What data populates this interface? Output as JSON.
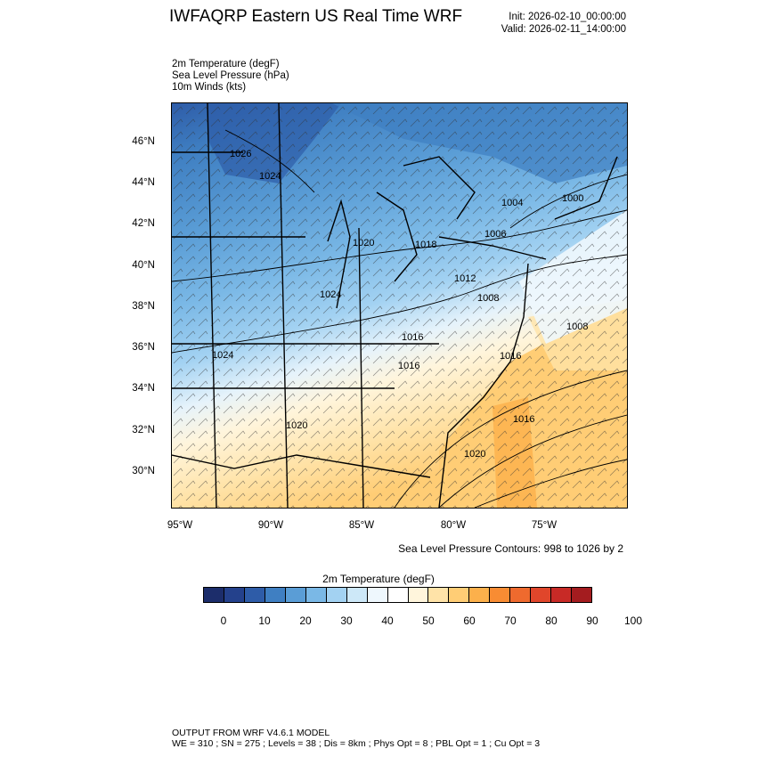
{
  "header": {
    "title": "IWFAQRP Eastern US Real Time WRF",
    "init": "Init: 2026-02-10_00:00:00",
    "valid": "Valid: 2026-02-11_14:00:00"
  },
  "fields": [
    "2m Temperature   (degF)",
    "Sea Level Pressure   (hPa)",
    "10m Winds   (kts)"
  ],
  "map": {
    "lat_labels": [
      "46°N",
      "44°N",
      "42°N",
      "40°N",
      "38°N",
      "36°N",
      "34°N",
      "32°N",
      "30°N"
    ],
    "lon_labels": [
      "95°W",
      "90°W",
      "85°W",
      "80°W",
      "75°W"
    ],
    "pressure_labels": [
      "1026",
      "1024",
      "1020",
      "1018",
      "1024",
      "1024",
      "1020",
      "1016",
      "1008",
      "1006",
      "1004",
      "1000",
      "1012",
      "1016",
      "1020",
      "1016",
      "1016",
      "1008"
    ]
  },
  "slp_note": "Sea Level Pressure Contours: 998 to 1026 by 2",
  "colorbar": {
    "title": "2m Temperature  (degF)",
    "labels": [
      "0",
      "10",
      "20",
      "30",
      "40",
      "50",
      "60",
      "70",
      "80",
      "90",
      "100"
    ],
    "colors": [
      "#1c2d6b",
      "#24418c",
      "#2e5ca8",
      "#3f7fc2",
      "#5a9dd6",
      "#7ab8e6",
      "#a3d2f2",
      "#cde8f8",
      "#eef7fd",
      "#ffffff",
      "#fff5dc",
      "#ffe3a8",
      "#ffcd75",
      "#fcb04b",
      "#f88c33",
      "#ef6a2e",
      "#e0462b",
      "#c82a26",
      "#a41c1f"
    ]
  },
  "footer": {
    "line1": "OUTPUT FROM WRF V4.6.1 MODEL",
    "line2": "WE = 310 ; SN = 275 ; Levels = 38 ; Dis = 8km ; Phys Opt = 8 ; PBL Opt = 1 ; Cu Opt = 3"
  }
}
